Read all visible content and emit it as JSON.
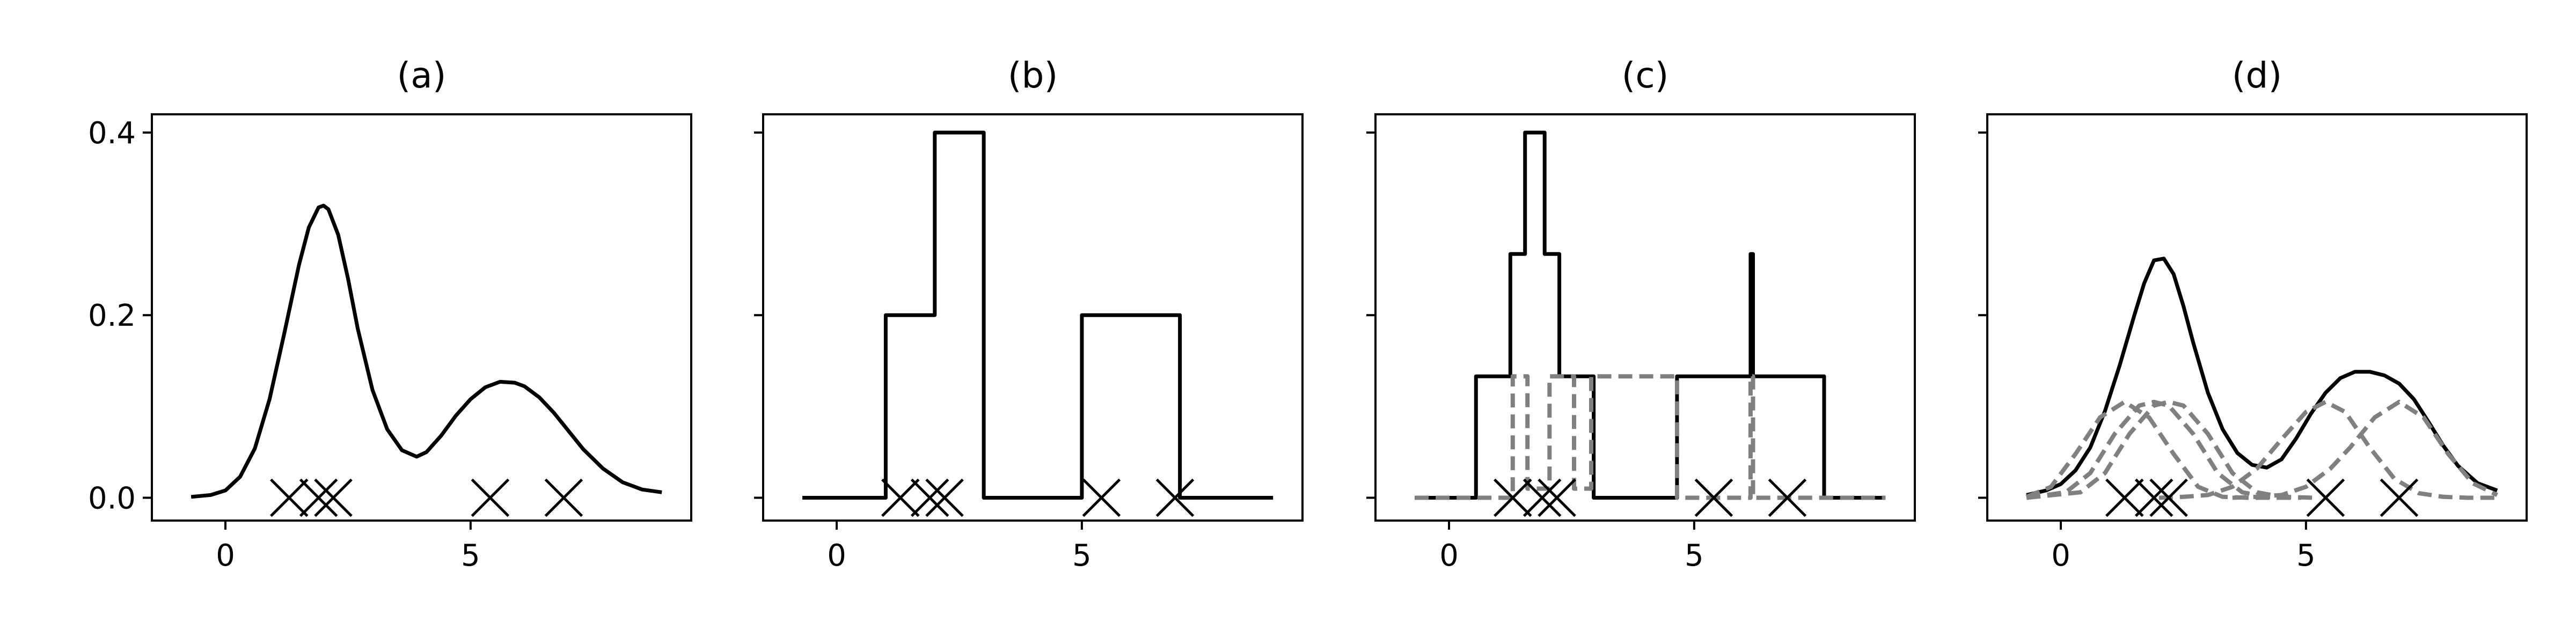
{
  "chart_data": [
    {
      "type": "line",
      "title": "(a)",
      "xlim": [
        -1.5,
        9.5
      ],
      "ylim": [
        -0.025,
        0.42
      ],
      "xticks": [
        0,
        5
      ],
      "yticks": [
        0.0,
        0.2,
        0.4
      ],
      "ytick_labels": [
        "0.0",
        "0.2",
        "0.4"
      ],
      "samples": [
        1.3,
        1.9,
        2.2,
        5.4,
        6.9
      ],
      "series": [
        {
          "x": [
            -0.7,
            -0.3,
            0.0,
            0.3,
            0.6,
            0.9,
            1.2,
            1.5,
            1.7,
            1.9,
            2.0,
            2.1,
            2.3,
            2.5,
            2.7,
            3.0,
            3.3,
            3.6,
            3.9,
            4.1,
            4.4,
            4.7,
            5.0,
            5.3,
            5.6,
            5.9,
            6.1,
            6.4,
            6.7,
            7.0,
            7.3,
            7.7,
            8.1,
            8.5,
            8.9
          ],
          "y": [
            0.001,
            0.003,
            0.008,
            0.023,
            0.054,
            0.108,
            0.18,
            0.255,
            0.296,
            0.318,
            0.32,
            0.316,
            0.288,
            0.24,
            0.185,
            0.118,
            0.075,
            0.052,
            0.045,
            0.05,
            0.068,
            0.09,
            0.108,
            0.121,
            0.127,
            0.126,
            0.122,
            0.11,
            0.093,
            0.073,
            0.053,
            0.032,
            0.017,
            0.009,
            0.006
          ],
          "style": "solid",
          "color": "#000000"
        }
      ]
    },
    {
      "type": "line",
      "title": "(b)",
      "xlim": [
        -1.5,
        9.5
      ],
      "ylim": [
        -0.025,
        0.42
      ],
      "xticks": [
        0,
        5
      ],
      "yticks": [
        0.0,
        0.2,
        0.4
      ],
      "samples": [
        1.3,
        1.9,
        2.2,
        5.4,
        6.9
      ],
      "series": [
        {
          "x": [
            -0.7,
            1.0,
            1.0,
            2.0,
            2.0,
            3.0,
            3.0,
            5.0,
            5.0,
            7.0,
            7.0,
            8.9
          ],
          "y": [
            0,
            0,
            0.2,
            0.2,
            0.4,
            0.4,
            0,
            0,
            0.2,
            0.2,
            0,
            0
          ],
          "style": "solid",
          "color": "#000000"
        }
      ]
    },
    {
      "type": "line",
      "title": "(c)",
      "xlim": [
        -1.5,
        9.5
      ],
      "ylim": [
        -0.025,
        0.42
      ],
      "xticks": [
        0,
        5
      ],
      "yticks": [
        0.0,
        0.2,
        0.4
      ],
      "samples": [
        1.3,
        1.9,
        2.2,
        5.4,
        6.9
      ],
      "series": [
        {
          "x": [
            -0.7,
            0.55,
            0.55,
            1.25,
            1.25,
            1.55,
            1.55,
            1.95,
            1.95,
            2.25,
            2.25,
            2.95,
            2.95,
            4.65,
            4.65,
            6.15,
            6.15,
            6.2,
            6.2,
            7.65,
            7.65,
            8.9
          ],
          "y": [
            0,
            0,
            0.133,
            0.133,
            0.267,
            0.267,
            0.4,
            0.4,
            0.267,
            0.267,
            0.133,
            0.133,
            0,
            0,
            0.133,
            0.133,
            0.267,
            0.267,
            0.133,
            0.133,
            0,
            0
          ],
          "style": "solid",
          "color": "#000000"
        },
        {
          "x": [
            -0.7,
            1.3,
            1.3,
            1.6,
            1.6,
            2.05,
            2.05,
            2.55,
            2.55,
            2.9,
            2.9,
            4.65,
            4.65,
            6.15,
            6.15,
            6.2,
            6.2,
            8.9
          ],
          "y": [
            0,
            0,
            0.133,
            0.133,
            0.01,
            0.01,
            0.133,
            0.133,
            0.01,
            0.01,
            0.133,
            0.133,
            0,
            0,
            0.133,
            0.133,
            0,
            0
          ],
          "style": "dashed",
          "color": "#808080"
        }
      ]
    },
    {
      "type": "line",
      "title": "(d)",
      "xlim": [
        -1.5,
        9.5
      ],
      "ylim": [
        -0.025,
        0.42
      ],
      "xticks": [
        0,
        5
      ],
      "yticks": [
        0.0,
        0.2,
        0.4
      ],
      "samples": [
        1.3,
        1.9,
        2.2,
        5.4,
        6.9
      ],
      "series": [
        {
          "x": [
            -0.7,
            -0.3,
            0.0,
            0.3,
            0.6,
            0.9,
            1.2,
            1.5,
            1.7,
            1.9,
            2.1,
            2.3,
            2.5,
            2.7,
            3.0,
            3.3,
            3.6,
            3.9,
            4.2,
            4.5,
            4.8,
            5.1,
            5.4,
            5.7,
            6.0,
            6.3,
            6.6,
            6.9,
            7.2,
            7.5,
            7.8,
            8.1,
            8.5,
            8.9
          ],
          "y": [
            0.003,
            0.008,
            0.015,
            0.03,
            0.055,
            0.095,
            0.145,
            0.2,
            0.235,
            0.26,
            0.262,
            0.245,
            0.21,
            0.17,
            0.115,
            0.075,
            0.049,
            0.036,
            0.033,
            0.042,
            0.065,
            0.092,
            0.115,
            0.131,
            0.138,
            0.138,
            0.134,
            0.125,
            0.108,
            0.083,
            0.057,
            0.035,
            0.016,
            0.008
          ],
          "style": "solid",
          "color": "#000000"
        },
        {
          "x": [
            -0.7,
            -0.2,
            0.3,
            0.8,
            1.3,
            1.8,
            2.3,
            2.8,
            3.3,
            3.8,
            4.3,
            4.8
          ],
          "y": [
            0.001,
            0.012,
            0.048,
            0.088,
            0.105,
            0.088,
            0.048,
            0.012,
            0.001,
            0,
            0,
            0
          ],
          "style": "dashed",
          "color": "#808080"
        },
        {
          "x": [
            -0.7,
            0.1,
            0.6,
            1.1,
            1.6,
            1.9,
            2.2,
            2.7,
            3.2,
            3.7,
            4.2,
            4.9
          ],
          "y": [
            0,
            0.006,
            0.027,
            0.07,
            0.101,
            0.105,
            0.101,
            0.07,
            0.027,
            0.006,
            0.001,
            0
          ],
          "style": "dashed",
          "color": "#808080"
        },
        {
          "x": [
            -0.7,
            0.4,
            0.9,
            1.4,
            1.9,
            2.2,
            2.5,
            3.0,
            3.5,
            4.0,
            4.5,
            5.2
          ],
          "y": [
            0,
            0.006,
            0.027,
            0.07,
            0.101,
            0.105,
            0.101,
            0.07,
            0.027,
            0.006,
            0.001,
            0
          ],
          "style": "dashed",
          "color": "#808080"
        },
        {
          "x": [
            2.0,
            2.5,
            3.0,
            3.5,
            4.0,
            4.5,
            5.0,
            5.4,
            5.8,
            6.3,
            6.8,
            7.3,
            7.8,
            8.3,
            8.9
          ],
          "y": [
            0,
            0.001,
            0.003,
            0.012,
            0.032,
            0.064,
            0.094,
            0.105,
            0.094,
            0.055,
            0.021,
            0.005,
            0.001,
            0,
            0
          ],
          "style": "dashed",
          "color": "#808080"
        },
        {
          "x": [
            3.5,
            4.0,
            4.5,
            5.0,
            5.5,
            5.9,
            6.4,
            6.9,
            7.4,
            7.9,
            8.4,
            8.9
          ],
          "y": [
            0,
            0.001,
            0.003,
            0.012,
            0.032,
            0.055,
            0.088,
            0.105,
            0.088,
            0.048,
            0.016,
            0.003
          ],
          "style": "dashed",
          "color": "#808080"
        }
      ]
    }
  ]
}
